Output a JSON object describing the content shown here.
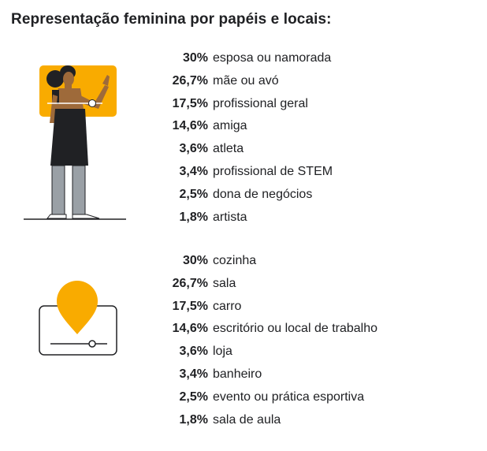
{
  "title": "Representação feminina por papéis e locais:",
  "colors": {
    "accent": "#f9ab00",
    "ink": "#202124",
    "skin": "#9e6a3a",
    "grey": "#9aa0a6"
  },
  "icons": {
    "roles": "woman-presenter-illustration",
    "locations": "map-pin-screen-illustration"
  },
  "chart_data": [
    {
      "type": "table",
      "categories": [
        "esposa ou namorada",
        "mãe ou avó",
        "profissional geral",
        "amiga",
        "atleta",
        "profissional de STEM",
        "dona de negócios",
        "artista"
      ],
      "values": [
        30,
        26.7,
        17.5,
        14.6,
        3.6,
        3.4,
        2.5,
        1.8
      ],
      "labels": [
        "30%",
        "26,7%",
        "17,5%",
        "14,6%",
        "3,6%",
        "3,4%",
        "2,5%",
        "1,8%"
      ]
    },
    {
      "type": "table",
      "categories": [
        "cozinha",
        "sala",
        "carro",
        "escritório ou local de trabalho",
        "loja",
        "banheiro",
        "evento ou prática esportiva",
        "sala de aula"
      ],
      "values": [
        30,
        26.7,
        17.5,
        14.6,
        3.6,
        3.4,
        2.5,
        1.8
      ],
      "labels": [
        "30%",
        "26,7%",
        "17,5%",
        "14,6%",
        "3,6%",
        "3,4%",
        "2,5%",
        "1,8%"
      ]
    }
  ]
}
